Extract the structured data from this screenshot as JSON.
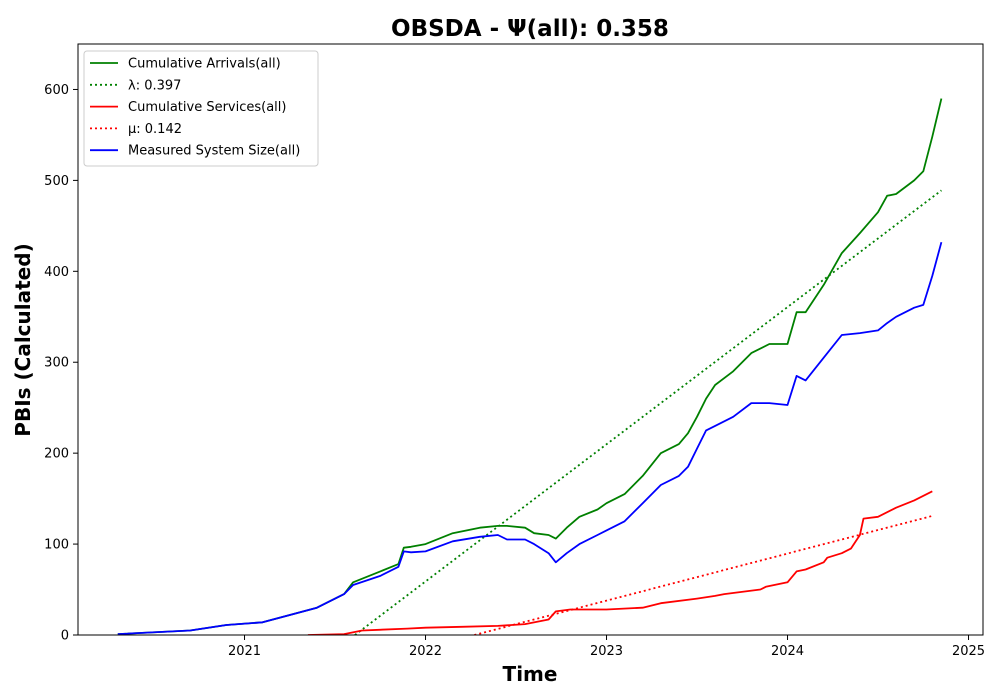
{
  "chart_data": {
    "type": "line",
    "title": "OBSDA -  Ψ(all): 0.358",
    "xlabel": "Time",
    "ylabel": "PBIs (Calculated)",
    "xlim": [
      2020.08,
      2025.08
    ],
    "ylim": [
      0,
      650
    ],
    "x_ticks": [
      2021,
      2022,
      2023,
      2024,
      2025
    ],
    "x_tick_labels": [
      "2021",
      "2022",
      "2023",
      "2024",
      "2025"
    ],
    "y_ticks": [
      0,
      100,
      200,
      300,
      400,
      500,
      600
    ],
    "y_tick_labels": [
      "0",
      "100",
      "200",
      "300",
      "400",
      "500",
      "600"
    ],
    "grid": false,
    "legend_position": "upper-left",
    "series": [
      {
        "name": "Cumulative Arrivals(all)",
        "color": "#008000",
        "style": "solid",
        "x": [
          2020.3,
          2020.7,
          2020.9,
          2021.1,
          2021.25,
          2021.4,
          2021.55,
          2021.6,
          2021.75,
          2021.85,
          2021.88,
          2021.92,
          2022.0,
          2022.15,
          2022.3,
          2022.4,
          2022.45,
          2022.55,
          2022.6,
          2022.68,
          2022.72,
          2022.78,
          2022.85,
          2022.95,
          2023.0,
          2023.1,
          2023.2,
          2023.3,
          2023.4,
          2023.45,
          2023.5,
          2023.55,
          2023.6,
          2023.7,
          2023.8,
          2023.9,
          2024.0,
          2024.05,
          2024.1,
          2024.2,
          2024.3,
          2024.4,
          2024.5,
          2024.55,
          2024.6,
          2024.7,
          2024.75,
          2024.8,
          2024.85
        ],
        "values": [
          1,
          5,
          11,
          14,
          22,
          30,
          45,
          58,
          70,
          78,
          96,
          97,
          100,
          112,
          118,
          120,
          120,
          118,
          112,
          110,
          106,
          118,
          130,
          138,
          145,
          155,
          175,
          200,
          210,
          222,
          240,
          260,
          275,
          290,
          310,
          320,
          320,
          355,
          355,
          385,
          420,
          442,
          465,
          483,
          485,
          500,
          510,
          548,
          590
        ]
      },
      {
        "name": "λ: 0.397",
        "color": "#008000",
        "style": "dotted",
        "x": [
          2021.61,
          2024.85
        ],
        "values": [
          0,
          489
        ]
      },
      {
        "name": "Cumulative Services(all)",
        "color": "#ff0000",
        "style": "solid",
        "x": [
          2021.35,
          2021.55,
          2021.65,
          2021.9,
          2022.0,
          2022.2,
          2022.4,
          2022.55,
          2022.68,
          2022.72,
          2022.8,
          2023.0,
          2023.2,
          2023.3,
          2023.5,
          2023.6,
          2023.65,
          2023.85,
          2023.88,
          2024.0,
          2024.05,
          2024.1,
          2024.2,
          2024.22,
          2024.3,
          2024.35,
          2024.4,
          2024.42,
          2024.5,
          2024.6,
          2024.7,
          2024.8
        ],
        "values": [
          0,
          1,
          5,
          7,
          8,
          9,
          10,
          12,
          17,
          26,
          28,
          28,
          30,
          35,
          40,
          43,
          45,
          50,
          53,
          58,
          70,
          72,
          80,
          85,
          90,
          95,
          110,
          128,
          130,
          140,
          148,
          158
        ]
      },
      {
        "name": "μ: 0.142",
        "color": "#ff0000",
        "style": "dotted",
        "x": [
          2022.27,
          2024.8
        ],
        "values": [
          0,
          131
        ]
      },
      {
        "name": "Measured System Size(all)",
        "color": "#0000ff",
        "style": "solid",
        "x": [
          2020.3,
          2020.7,
          2020.9,
          2021.1,
          2021.25,
          2021.4,
          2021.55,
          2021.6,
          2021.75,
          2021.85,
          2021.88,
          2021.92,
          2022.0,
          2022.15,
          2022.3,
          2022.4,
          2022.45,
          2022.55,
          2022.6,
          2022.68,
          2022.72,
          2022.78,
          2022.85,
          2022.95,
          2023.0,
          2023.1,
          2023.2,
          2023.3,
          2023.4,
          2023.45,
          2023.5,
          2023.55,
          2023.6,
          2023.7,
          2023.8,
          2023.9,
          2024.0,
          2024.05,
          2024.1,
          2024.2,
          2024.3,
          2024.4,
          2024.5,
          2024.55,
          2024.6,
          2024.7,
          2024.75,
          2024.8,
          2024.85
        ],
        "values": [
          1,
          5,
          11,
          14,
          22,
          30,
          45,
          55,
          65,
          75,
          92,
          91,
          92,
          103,
          108,
          110,
          105,
          105,
          100,
          90,
          80,
          90,
          100,
          110,
          115,
          125,
          145,
          165,
          175,
          185,
          205,
          225,
          230,
          240,
          255,
          255,
          253,
          285,
          280,
          305,
          330,
          332,
          335,
          343,
          350,
          360,
          363,
          395,
          432
        ]
      }
    ]
  }
}
